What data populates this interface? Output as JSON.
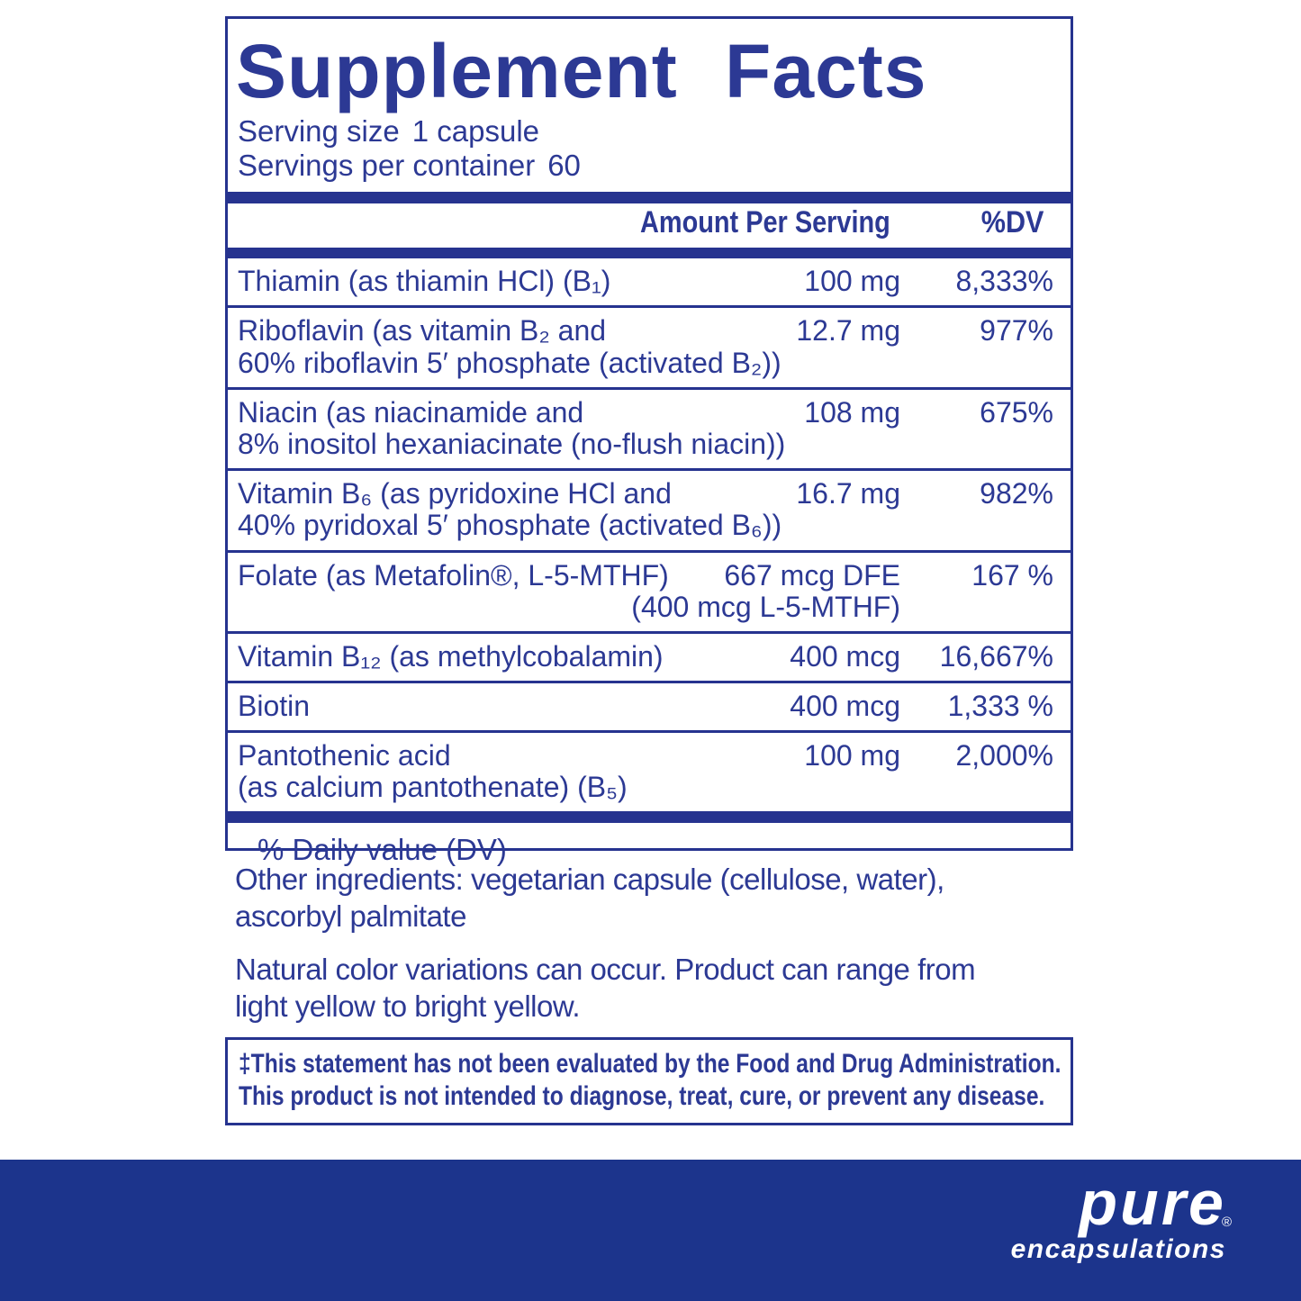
{
  "colors": {
    "navy_text": "#2c3994",
    "rule_and_bars": "#26338f",
    "bottom_band": "#1c348c",
    "background": "#ffffff",
    "logo_text": "#ffffff"
  },
  "panel": {
    "title": "Supplement Facts",
    "serving": [
      {
        "label": "Serving size",
        "value": "1 capsule"
      },
      {
        "label": "Servings per container",
        "value": "60"
      }
    ],
    "header": {
      "amount": "Amount Per Serving",
      "dv": "%DV"
    },
    "rows": [
      {
        "name": "Thiamin (as thiamin HCl) (B₁)",
        "amount": "100 mg",
        "dv": "8,333%"
      },
      {
        "name": "Riboflavin (as vitamin B₂ and",
        "name2": "60% riboflavin 5′ phosphate (activated B₂))",
        "amount": "12.7 mg",
        "dv": "977%"
      },
      {
        "name": "Niacin (as niacinamide and",
        "name2": "8% inositol hexaniacinate (no-flush niacin))",
        "amount": "108 mg",
        "dv": "675%"
      },
      {
        "name": "Vitamin B₆ (as pyridoxine HCl and",
        "name2": "40% pyridoxal 5′ phosphate (activated B₆))",
        "amount": "16.7 mg",
        "dv": "982%"
      },
      {
        "name": "Folate (as Metafolin®, L-5-MTHF)",
        "amount": "667 mcg DFE",
        "amount2": "(400 mcg L-5-MTHF)",
        "dv": "167 %"
      },
      {
        "name": "Vitamin B₁₂ (as methylcobalamin)",
        "amount": "400 mcg",
        "dv": "16,667%"
      },
      {
        "name": "Biotin",
        "amount": "400 mcg",
        "dv": "1,333 %"
      },
      {
        "name": "Pantothenic acid",
        "name2": "(as calcium pantothenate) (B₅)",
        "amount": "100 mg",
        "dv": "2,000%"
      }
    ],
    "footnote": "% Daily value (DV)"
  },
  "other_ingredients": {
    "line1": "Other ingredients: vegetarian capsule (cellulose, water),",
    "line2": "ascorbyl palmitate"
  },
  "color_note": {
    "line1": "Natural color variations can occur. Product can range from",
    "line2": "light yellow to bright yellow."
  },
  "disclaimer": {
    "line1": "‡This statement has not been evaluated by the Food and Drug Administration.",
    "line2": "This product is not intended to diagnose, treat, cure, or prevent any disease."
  },
  "brand": {
    "name": "pure",
    "sub": "encapsulations",
    "reg": "®"
  }
}
